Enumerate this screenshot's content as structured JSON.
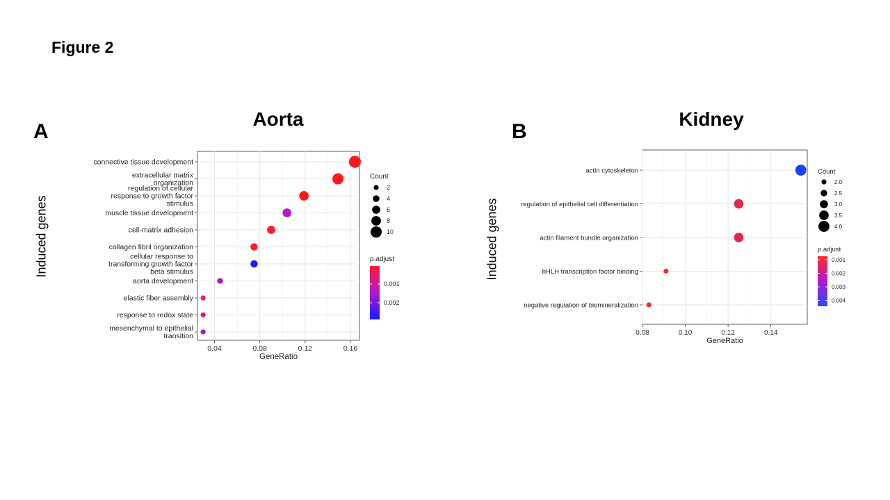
{
  "figure_title": "Figure 2",
  "chart_data": [
    {
      "panel": "A",
      "type": "scatter",
      "title": "Aorta",
      "ylabel": "Induced genes",
      "xlabel": "GeneRatio",
      "xlim": [
        0.025,
        0.168
      ],
      "xticks": [
        "0.04",
        "0.08",
        "0.12",
        "0.16"
      ],
      "xtick_values": [
        0.04,
        0.08,
        0.12,
        0.16
      ],
      "grid": true,
      "categories": [
        [
          "connective tissue development"
        ],
        [
          "extracellular matrix",
          "organization"
        ],
        [
          "regulation of cellular",
          "response to growth factor",
          "stimulus"
        ],
        [
          "muscle tissue development"
        ],
        [
          "cell-matrix adhesion"
        ],
        [
          "collagen fibril organization"
        ],
        [
          "cellular response to",
          "transforming growth factor",
          "beta stimulus"
        ],
        [
          "aorta development"
        ],
        [
          "elastic fiber assembly"
        ],
        [
          "response to redox state"
        ],
        [
          "mesenchymal to epithelial",
          "transition"
        ]
      ],
      "points": [
        {
          "x": 0.164,
          "count": 11,
          "p_adjust": 3e-05,
          "color": "#ff1a1a"
        },
        {
          "x": 0.149,
          "count": 10,
          "p_adjust": 8e-05,
          "color": "#ff1a1a"
        },
        {
          "x": 0.119,
          "count": 8,
          "p_adjust": 0.0001,
          "color": "#ff1a1a"
        },
        {
          "x": 0.104,
          "count": 7,
          "p_adjust": 0.0016,
          "color": "#b81cc8"
        },
        {
          "x": 0.09,
          "count": 6,
          "p_adjust": 0.0002,
          "color": "#ff1a2a"
        },
        {
          "x": 0.075,
          "count": 5,
          "p_adjust": 0.0002,
          "color": "#ff1a2a"
        },
        {
          "x": 0.075,
          "count": 5,
          "p_adjust": 0.0028,
          "color": "#1a1aff"
        },
        {
          "x": 0.045,
          "count": 3,
          "p_adjust": 0.0017,
          "color": "#a51ac8"
        },
        {
          "x": 0.03,
          "count": 2,
          "p_adjust": 0.0004,
          "color": "#f01a4a"
        },
        {
          "x": 0.03,
          "count": 2,
          "p_adjust": 0.0005,
          "color": "#e81a5a"
        },
        {
          "x": 0.03,
          "count": 2,
          "p_adjust": 0.0017,
          "color": "#a01ac8"
        }
      ],
      "legend_count": {
        "title": "Count",
        "labels": [
          "2",
          "4",
          "6",
          "8",
          "10"
        ],
        "values": [
          2,
          4,
          6,
          8,
          10
        ]
      },
      "legend_color": {
        "title": "p.adjust",
        "labels": [
          "0.001",
          "0.002"
        ],
        "colors": [
          "#ff1a33",
          "#1a1aff"
        ]
      }
    },
    {
      "panel": "B",
      "type": "scatter",
      "title": "Kidney",
      "ylabel": "Induced genes",
      "xlabel": "GeneRatio",
      "xlim": [
        0.08,
        0.157
      ],
      "xticks": [
        "0.08",
        "0.10",
        "0.12",
        "0.14"
      ],
      "xtick_values": [
        0.08,
        0.1,
        0.12,
        0.14
      ],
      "grid": true,
      "categories": [
        [
          "actin cytoskeleton"
        ],
        [
          "regulation of epithelial cell differentiation"
        ],
        [
          "actin filament bundle organization"
        ],
        [
          "bHLH transcription factor binding"
        ],
        [
          "negative regulation of biomineralization"
        ]
      ],
      "points": [
        {
          "x": 0.154,
          "count": 4,
          "p_adjust": 0.0045,
          "color": "#1a44f5"
        },
        {
          "x": 0.125,
          "count": 3.5,
          "p_adjust": 0.0015,
          "color": "#e02a4a"
        },
        {
          "x": 0.125,
          "count": 3.5,
          "p_adjust": 0.0015,
          "color": "#e02a4a"
        },
        {
          "x": 0.091,
          "count": 2,
          "p_adjust": 0.0006,
          "color": "#f52a2a"
        },
        {
          "x": 0.083,
          "count": 2,
          "p_adjust": 0.0006,
          "color": "#f52a2a"
        }
      ],
      "legend_count": {
        "title": "Count",
        "labels": [
          "2.0",
          "2.5",
          "3.0",
          "3.5",
          "4.0"
        ],
        "values": [
          2.0,
          2.5,
          3.0,
          3.5,
          4.0
        ]
      },
      "legend_color": {
        "title": "p.adjust",
        "labels": [
          "0.001",
          "0.002",
          "0.003",
          "0.004"
        ],
        "colors": [
          "#ff2a2a",
          "#2a4af5"
        ]
      }
    }
  ]
}
